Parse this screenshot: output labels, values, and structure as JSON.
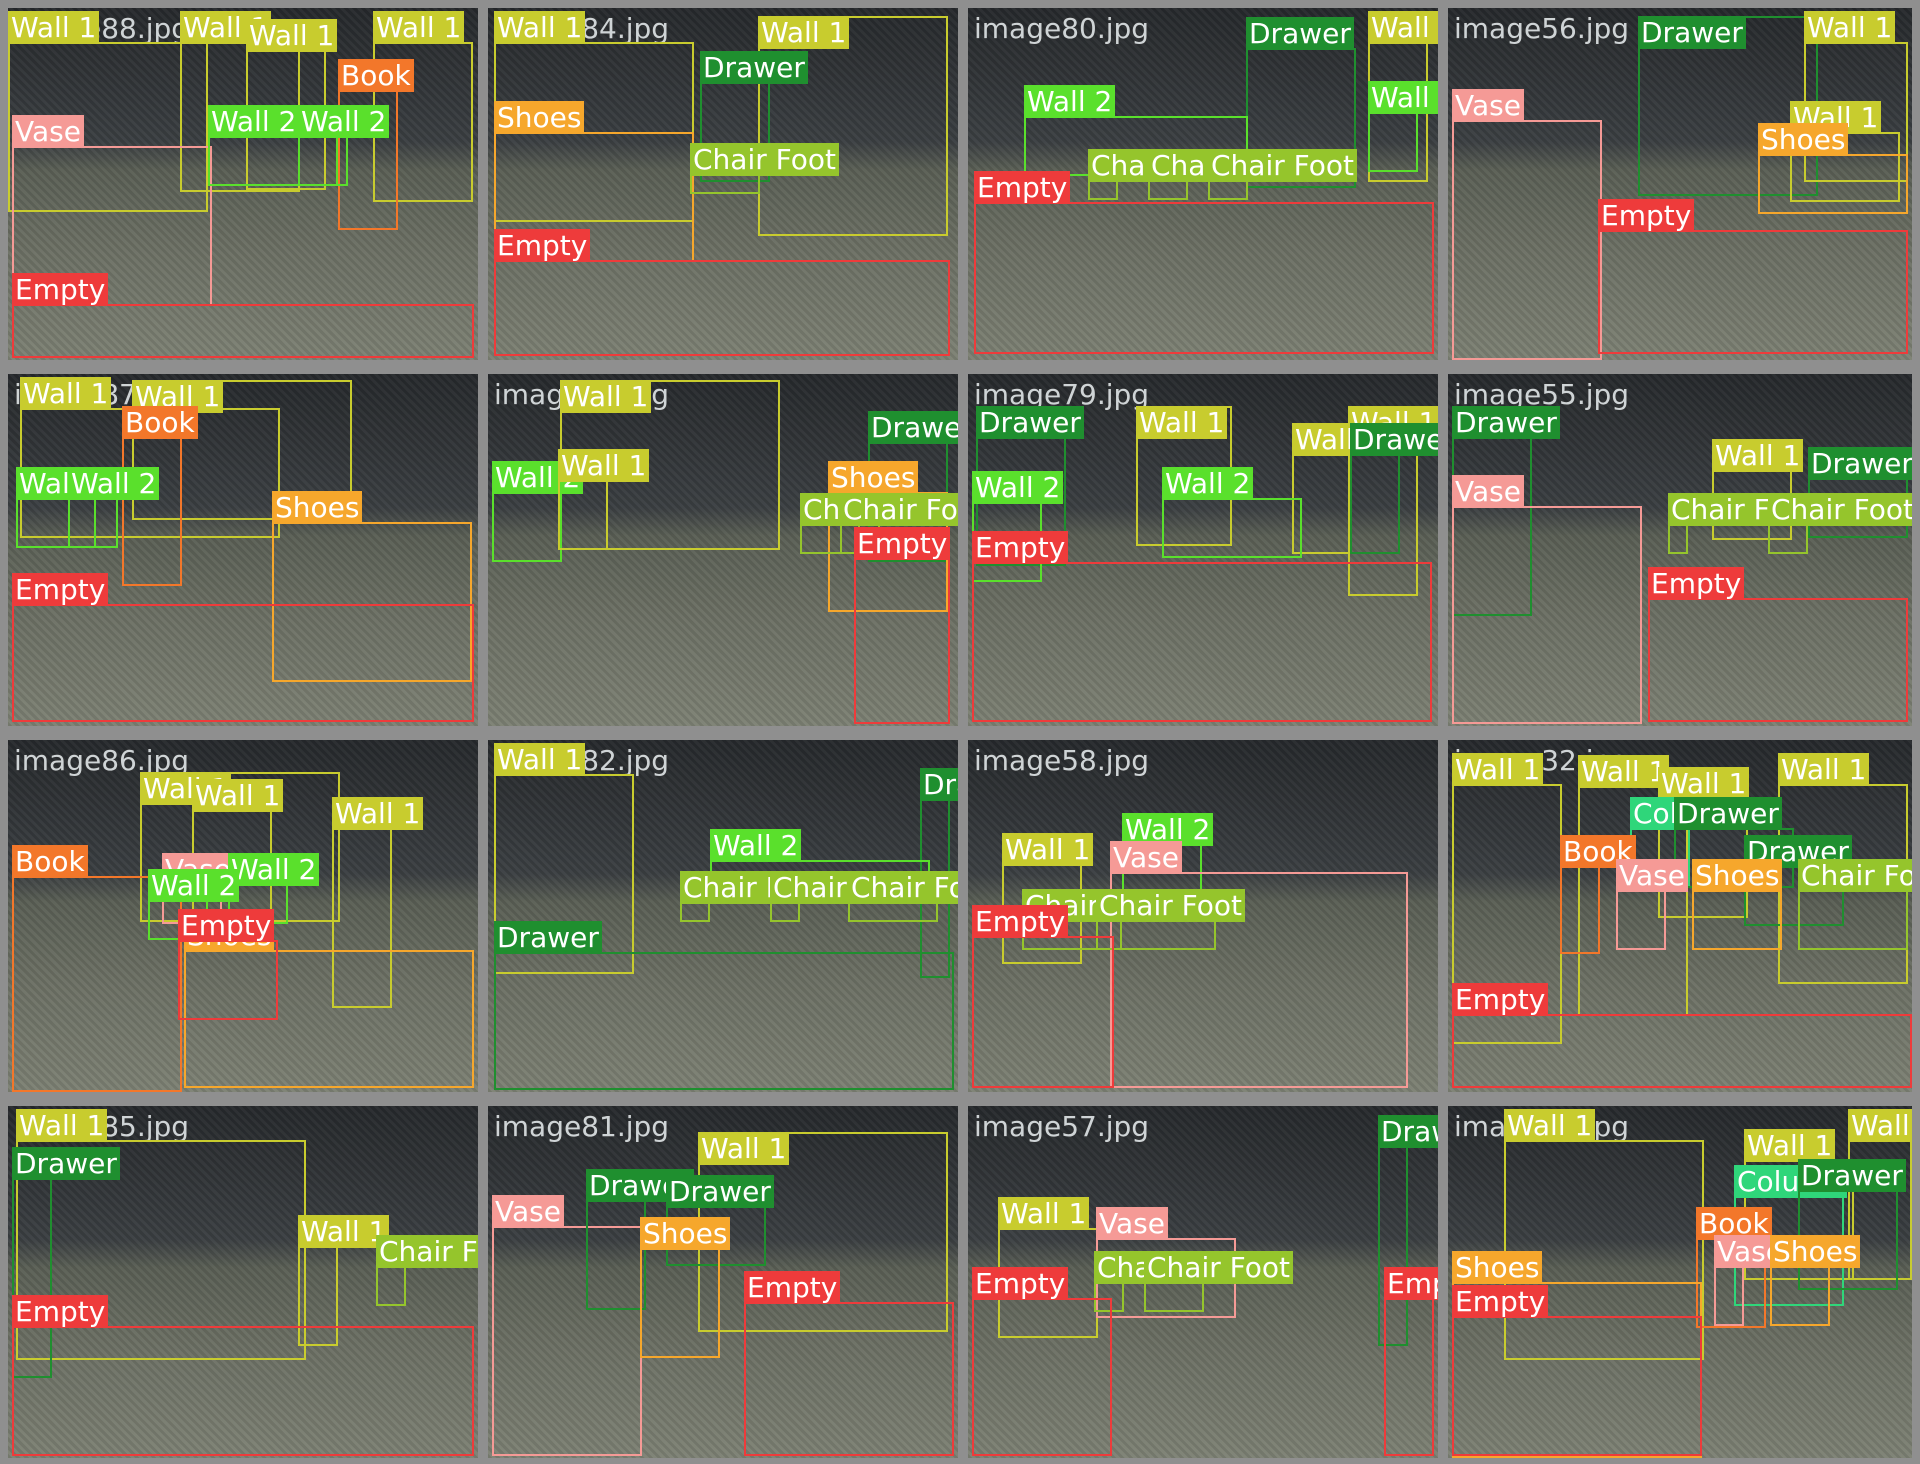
{
  "colors": {
    "Wall 1": "#c8cc2e",
    "Wall 2": "#5ae02c",
    "Drawer": "#1f8f2f",
    "Chair Foot": "#95c52c",
    "Empty": "#ee3b3b",
    "Vase": "#f59a96",
    "Shoes": "#f6a72c",
    "Book": "#f3772a",
    "Column": "#2fd67a"
  },
  "tiles": [
    {
      "filename": "image88.jpg",
      "labels": [
        "Wall 1",
        "Wall 1",
        "Wall 1",
        "Wall 1",
        "Book",
        "Vase",
        "Wall 2",
        "Wall 2",
        "Empty"
      ]
    },
    {
      "filename": "image84.jpg",
      "labels": [
        "Wall 1",
        "Wall 1",
        "Drawer",
        "Shoes",
        "Chair Foot",
        "Empty"
      ]
    },
    {
      "filename": "image80.jpg",
      "labels": [
        "Drawer",
        "Wall 1",
        "Wall 2",
        "Wall 2",
        "Chair Foot",
        "Chair Foot",
        "Chair Foot",
        "Empty"
      ]
    },
    {
      "filename": "image56.jpg",
      "labels": [
        "Drawer",
        "Wall 1",
        "Vase",
        "Wall 1",
        "Shoes",
        "Empty"
      ]
    },
    {
      "filename": "image87.jpg",
      "labels": [
        "Wall 1",
        "Wall 1",
        "Book",
        "Wall 2",
        "Wall 2",
        "Shoes",
        "Empty"
      ]
    },
    {
      "filename": "image83.jpg",
      "labels": [
        "Wall 1",
        "Drawer",
        "Wall 2",
        "Wall 1",
        "Shoes",
        "Chair Foot",
        "Chair Foot",
        "Empty"
      ]
    },
    {
      "filename": "image79.jpg",
      "labels": [
        "Drawer",
        "Wall 1",
        "Wall 1",
        "Wall 1",
        "Drawer",
        "Wall 2",
        "Wall 2",
        "Empty"
      ]
    },
    {
      "filename": "image55.jpg",
      "labels": [
        "Drawer",
        "Vase",
        "Wall 1",
        "Drawer",
        "Chair Foot",
        "Chair Foot",
        "Empty"
      ]
    },
    {
      "filename": "image86.jpg",
      "labels": [
        "Wall 1",
        "Wall 1",
        "Wall 1",
        "Book",
        "Vase",
        "Wall 2",
        "Wall 2",
        "Shoes",
        "Empty"
      ]
    },
    {
      "filename": "image82.jpg",
      "labels": [
        "Wall 1",
        "Drawer",
        "Wall 2",
        "Chair Foot",
        "Chair Foot",
        "Chair Foot",
        "Drawer"
      ]
    },
    {
      "filename": "image58.jpg",
      "labels": [
        "Wall 1",
        "Wall 2",
        "Vase",
        "Chair Foot",
        "Chair Foot",
        "Empty"
      ]
    },
    {
      "filename": "image32.jpg",
      "labels": [
        "Wall 1",
        "Wall 1",
        "Wall 1",
        "Wall 1",
        "Column",
        "Drawer",
        "Book",
        "Drawer",
        "Vase",
        "Shoes",
        "Chair Foot",
        "Empty"
      ]
    },
    {
      "filename": "image85.jpg",
      "labels": [
        "Wall 1",
        "Drawer",
        "Wall 1",
        "Chair Foot",
        "Empty"
      ]
    },
    {
      "filename": "image81.jpg",
      "labels": [
        "Wall 1",
        "Vase",
        "Drawer",
        "Drawer",
        "Shoes",
        "Empty"
      ]
    },
    {
      "filename": "image57.jpg",
      "labels": [
        "Drawer",
        "Wall 1",
        "Vase",
        "Chair Foot",
        "Chair Foot",
        "Empty",
        "Empty"
      ]
    },
    {
      "filename": "image30.jpg",
      "labels": [
        "Wall 1",
        "Wall 1",
        "Wall 1",
        "Column",
        "Drawer",
        "Book",
        "Vase",
        "Shoes",
        "Shoes",
        "Empty"
      ]
    }
  ]
}
